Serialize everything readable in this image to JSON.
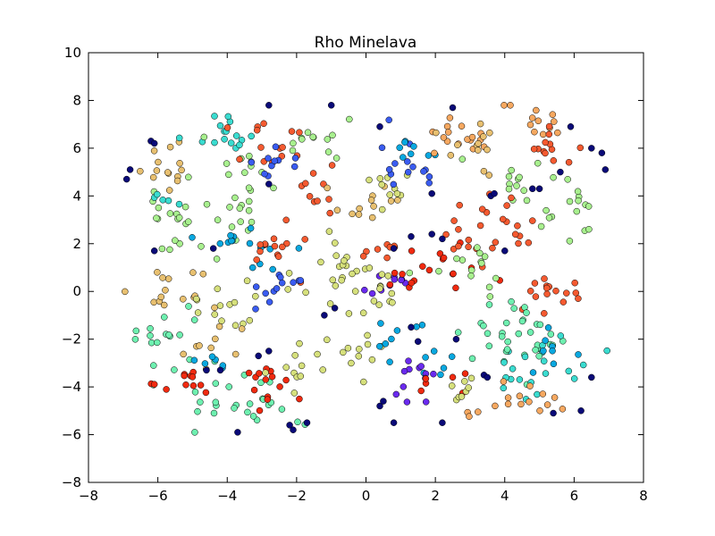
{
  "chart_data": {
    "type": "scatter",
    "title": "Rho Minelava",
    "xlabel": "",
    "ylabel": "",
    "xlim": [
      -8,
      8
    ],
    "ylim": [
      -8,
      10
    ],
    "xticks": [
      -8,
      -6,
      -4,
      -2,
      0,
      2,
      4,
      6,
      8
    ],
    "yticks": [
      -8,
      -6,
      -4,
      -2,
      0,
      2,
      4,
      6,
      8,
      10
    ],
    "xtick_labels": [
      "−8",
      "−6",
      "−4",
      "−2",
      "0",
      "2",
      "4",
      "6",
      "8"
    ],
    "ytick_labels": [
      "−8",
      "−6",
      "−4",
      "−2",
      "0",
      "2",
      "4",
      "6",
      "8",
      "10"
    ],
    "grid": false,
    "legend": false,
    "colormap": "rainbow",
    "colors": {
      "c0": "#0a0a78",
      "c1": "#6a2aee",
      "c2": "#3a5cf0",
      "c3": "#0aa8e0",
      "c4": "#3adcd0",
      "c5": "#6ef0b0",
      "c6": "#a8f08e",
      "c7": "#d6e07c",
      "c8": "#e8c070",
      "c9": "#f6a860",
      "c10": "#f55a30",
      "c11": "#f02a10"
    },
    "clusters": [
      {
        "color": "c8",
        "cx": -5.8,
        "cy": 5.4,
        "sx": 0.4,
        "sy": 0.6,
        "n": 14
      },
      {
        "color": "c4",
        "cx": -4.1,
        "cy": 6.6,
        "sx": 0.6,
        "sy": 0.5,
        "n": 16
      },
      {
        "color": "c6",
        "cx": -3.7,
        "cy": 5.3,
        "sx": 0.4,
        "sy": 0.6,
        "n": 10
      },
      {
        "color": "c10",
        "cx": -2.9,
        "cy": 6.4,
        "sx": 0.5,
        "sy": 0.7,
        "n": 14
      },
      {
        "color": "c2",
        "cx": -2.6,
        "cy": 5.3,
        "sx": 0.3,
        "sy": 0.3,
        "n": 10
      },
      {
        "color": "c6",
        "cx": -1.5,
        "cy": 6.2,
        "sx": 0.5,
        "sy": 0.6,
        "n": 12
      },
      {
        "color": "c10",
        "cx": -1.5,
        "cy": 4.4,
        "sx": 0.4,
        "sy": 0.8,
        "n": 10
      },
      {
        "color": "c6",
        "cx": -5.4,
        "cy": 3.0,
        "sx": 0.6,
        "sy": 0.9,
        "n": 18
      },
      {
        "color": "c6",
        "cx": -3.9,
        "cy": 3.4,
        "sx": 0.6,
        "sy": 0.6,
        "n": 16
      },
      {
        "color": "c4",
        "cx": -5.9,
        "cy": 3.8,
        "sx": 0.4,
        "sy": 0.2,
        "n": 5
      },
      {
        "color": "c3",
        "cx": -3.8,
        "cy": 2.3,
        "sx": 0.5,
        "sy": 0.3,
        "n": 10
      },
      {
        "color": "c3",
        "cx": -2.9,
        "cy": 1.5,
        "sx": 0.3,
        "sy": 0.4,
        "n": 6
      },
      {
        "color": "c10",
        "cx": -2.3,
        "cy": 1.7,
        "sx": 0.5,
        "sy": 0.5,
        "n": 14
      },
      {
        "color": "c2",
        "cx": -2.6,
        "cy": 0.3,
        "sx": 0.5,
        "sy": 0.4,
        "n": 12
      },
      {
        "color": "c8",
        "cx": -5.6,
        "cy": 0.2,
        "sx": 0.6,
        "sy": 0.5,
        "n": 14
      },
      {
        "color": "c7",
        "cx": -4.2,
        "cy": -0.6,
        "sx": 0.6,
        "sy": 0.8,
        "n": 14
      },
      {
        "color": "c5",
        "cx": -5.6,
        "cy": -2.0,
        "sx": 0.7,
        "sy": 0.9,
        "n": 18
      },
      {
        "color": "c8",
        "cx": -4.3,
        "cy": -2.3,
        "sx": 0.5,
        "sy": 0.6,
        "n": 10
      },
      {
        "color": "c3",
        "cx": -4.3,
        "cy": -3.0,
        "sx": 0.3,
        "sy": 0.2,
        "n": 6
      },
      {
        "color": "c11",
        "cx": -5.2,
        "cy": -3.9,
        "sx": 0.4,
        "sy": 0.3,
        "n": 12
      },
      {
        "color": "c5",
        "cx": -4.2,
        "cy": -4.8,
        "sx": 0.5,
        "sy": 0.5,
        "n": 12
      },
      {
        "color": "c5",
        "cx": -2.8,
        "cy": -4.2,
        "sx": 0.5,
        "sy": 0.8,
        "n": 14
      },
      {
        "color": "c11",
        "cx": -2.8,
        "cy": -4.0,
        "sx": 0.4,
        "sy": 0.5,
        "n": 14
      },
      {
        "color": "c7",
        "cx": -1.7,
        "cy": -3.2,
        "sx": 0.5,
        "sy": 0.6,
        "n": 14
      },
      {
        "color": "c7",
        "cx": -0.7,
        "cy": 1.1,
        "sx": 0.6,
        "sy": 1.2,
        "n": 22
      },
      {
        "color": "c8",
        "cx": 0.1,
        "cy": 3.8,
        "sx": 0.5,
        "sy": 0.7,
        "n": 12
      },
      {
        "color": "c7",
        "cx": 0.7,
        "cy": 4.2,
        "sx": 0.4,
        "sy": 0.5,
        "n": 10
      },
      {
        "color": "c1",
        "cx": 0.6,
        "cy": 0.4,
        "sx": 0.4,
        "sy": 0.3,
        "n": 10
      },
      {
        "color": "c7",
        "cx": 0.4,
        "cy": -0.6,
        "sx": 0.5,
        "sy": 0.7,
        "n": 12
      },
      {
        "color": "c7",
        "cx": -0.3,
        "cy": -2.5,
        "sx": 0.4,
        "sy": 0.6,
        "n": 8
      },
      {
        "color": "c10",
        "cx": 0.5,
        "cy": 1.9,
        "sx": 0.4,
        "sy": 0.3,
        "n": 8
      },
      {
        "color": "c2",
        "cx": 1.2,
        "cy": 5.5,
        "sx": 0.5,
        "sy": 0.6,
        "n": 14
      },
      {
        "color": "c3",
        "cx": 1.6,
        "cy": 6.1,
        "sx": 0.4,
        "sy": 0.4,
        "n": 8
      },
      {
        "color": "c9",
        "cx": 2.9,
        "cy": 6.5,
        "sx": 0.6,
        "sy": 0.4,
        "n": 16
      },
      {
        "color": "c8",
        "cx": 3.3,
        "cy": 5.7,
        "sx": 0.5,
        "sy": 0.6,
        "n": 12
      },
      {
        "color": "c9",
        "cx": 4.9,
        "cy": 6.9,
        "sx": 0.5,
        "sy": 0.5,
        "n": 12
      },
      {
        "color": "c10",
        "cx": 5.3,
        "cy": 6.0,
        "sx": 0.5,
        "sy": 0.5,
        "n": 12
      },
      {
        "color": "c6",
        "cx": 4.4,
        "cy": 4.9,
        "sx": 0.6,
        "sy": 0.6,
        "n": 12
      },
      {
        "color": "c6",
        "cx": 5.8,
        "cy": 3.6,
        "sx": 0.6,
        "sy": 0.8,
        "n": 16
      },
      {
        "color": "c10",
        "cx": 4.3,
        "cy": 3.0,
        "sx": 0.4,
        "sy": 0.6,
        "n": 12
      },
      {
        "color": "c11",
        "cx": 1.8,
        "cy": 1.0,
        "sx": 0.7,
        "sy": 0.6,
        "n": 18
      },
      {
        "color": "c10",
        "cx": 3.1,
        "cy": 2.1,
        "sx": 0.6,
        "sy": 0.5,
        "n": 14
      },
      {
        "color": "c6",
        "cx": 3.0,
        "cy": 0.8,
        "sx": 0.6,
        "sy": 0.8,
        "n": 14
      },
      {
        "color": "c10",
        "cx": 5.3,
        "cy": -0.1,
        "sx": 0.7,
        "sy": 0.4,
        "n": 16
      },
      {
        "color": "c5",
        "cx": 4.8,
        "cy": -1.6,
        "sx": 0.8,
        "sy": 0.7,
        "n": 22
      },
      {
        "color": "c4",
        "cx": 4.9,
        "cy": -3.2,
        "sx": 0.8,
        "sy": 0.7,
        "n": 20
      },
      {
        "color": "c3",
        "cx": 5.2,
        "cy": -2.4,
        "sx": 0.5,
        "sy": 0.5,
        "n": 8
      },
      {
        "color": "c9",
        "cx": 4.6,
        "cy": -4.3,
        "sx": 0.5,
        "sy": 0.4,
        "n": 12
      },
      {
        "color": "c3",
        "cx": 1.2,
        "cy": -2.3,
        "sx": 0.6,
        "sy": 0.6,
        "n": 14
      },
      {
        "color": "c1",
        "cx": 1.5,
        "cy": -3.7,
        "sx": 0.5,
        "sy": 0.5,
        "n": 12
      },
      {
        "color": "c11",
        "cx": 2.3,
        "cy": -4.2,
        "sx": 0.4,
        "sy": 0.3,
        "n": 6
      },
      {
        "color": "c7",
        "cx": 2.8,
        "cy": -4.3,
        "sx": 0.4,
        "sy": 0.4,
        "n": 8
      },
      {
        "color": "c5",
        "cx": 3.6,
        "cy": -2.0,
        "sx": 0.6,
        "sy": 0.6,
        "n": 12
      },
      {
        "color": "c9",
        "cx": 3.4,
        "cy": -4.9,
        "sx": 0.3,
        "sy": 0.4,
        "n": 4
      }
    ],
    "outliers": [
      {
        "color": "c0",
        "points": [
          [
            -6.9,
            4.7
          ],
          [
            -6.8,
            5.1
          ],
          [
            -6.2,
            6.3
          ],
          [
            -6.1,
            6.2
          ],
          [
            -6.1,
            1.7
          ],
          [
            -4.4,
            1.8
          ],
          [
            -2.8,
            7.8
          ],
          [
            -2.8,
            4.5
          ],
          [
            -1.0,
            7.8
          ],
          [
            -3.1,
            -2.7
          ],
          [
            -2.8,
            -2.5
          ],
          [
            -2.2,
            -5.6
          ],
          [
            -2.1,
            -5.8
          ],
          [
            -1.7,
            -5.5
          ],
          [
            -1.2,
            -1.0
          ],
          [
            -0.9,
            -0.7
          ],
          [
            -3.7,
            -5.9
          ],
          [
            0.4,
            6.9
          ],
          [
            0.8,
            1.8
          ],
          [
            1.3,
            2.3
          ],
          [
            1.9,
            4.1
          ],
          [
            1.9,
            2.4
          ],
          [
            2.2,
            2.2
          ],
          [
            2.5,
            7.7
          ],
          [
            3.6,
            4.0
          ],
          [
            3.7,
            4.1
          ],
          [
            4.0,
            1.7
          ],
          [
            4.8,
            4.3
          ],
          [
            5.0,
            4.3
          ],
          [
            5.6,
            5.0
          ],
          [
            5.9,
            6.9
          ],
          [
            6.5,
            6.0
          ],
          [
            6.8,
            5.8
          ],
          [
            6.9,
            5.1
          ],
          [
            1.3,
            -1.5
          ],
          [
            1.5,
            -2.1
          ],
          [
            2.6,
            -2.0
          ],
          [
            3.4,
            -3.5
          ],
          [
            3.5,
            -3.6
          ],
          [
            0.4,
            -4.8
          ],
          [
            0.5,
            -4.6
          ],
          [
            0.8,
            -5.5
          ],
          [
            2.2,
            -5.5
          ],
          [
            5.4,
            -5.1
          ],
          [
            6.2,
            -5.0
          ],
          [
            6.5,
            -3.6
          ],
          [
            -4.6,
            -3.3
          ],
          [
            -4.2,
            -3.3
          ]
        ]
      }
    ]
  }
}
